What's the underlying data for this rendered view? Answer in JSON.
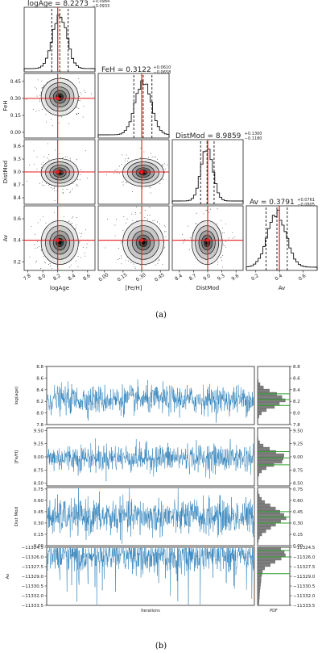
{
  "figure_a": {
    "caption": "(a)",
    "titles": [
      {
        "name": "logAge",
        "value": "8.2273",
        "plus": "+0.0984",
        "minus": "−0.0933"
      },
      {
        "name": "FeH",
        "value": "0.3122",
        "plus": "+0.0610",
        "minus": "−0.0658"
      },
      {
        "name": "DistMod",
        "value": "8.9859",
        "plus": "+0.1300",
        "minus": "−0.1180"
      },
      {
        "name": "Av",
        "value": "0.3791",
        "plus": "+0.0761",
        "minus": "−0.0805"
      }
    ],
    "xlabels": [
      "logAge",
      "[Fe/H]",
      "DistMod",
      "Av"
    ],
    "ylabels": [
      "FeH",
      "DistMod",
      "Av"
    ]
  },
  "figure_b": {
    "caption": "(b)",
    "xlabel_left": "Iterations",
    "xlabel_right": "PDF",
    "ylabels": [
      "log(age)",
      "[Fe/H]",
      "Dist Mod",
      "Av"
    ]
  },
  "colors": {
    "trace": "#1f77b4",
    "truth": "#e41a1c",
    "hist_green": "#2ca02c",
    "hist_fill": "#7f7f7f"
  },
  "chart_data": [
    {
      "type": "corner",
      "parameters": [
        "logAge",
        "FeH",
        "DistMod",
        "Av"
      ],
      "median": [
        8.2273,
        0.3122,
        8.9859,
        0.3791
      ],
      "err_plus": [
        0.0984,
        0.061,
        0.13,
        0.0761
      ],
      "err_minus": [
        0.0933,
        0.0658,
        0.118,
        0.0805
      ],
      "truth": [
        8.2,
        0.3,
        9.0,
        0.4
      ],
      "ranges": [
        [
          7.75,
          8.7
        ],
        [
          -0.05,
          0.52
        ],
        [
          8.25,
          9.75
        ],
        [
          0.12,
          0.72
        ]
      ],
      "ticks": [
        [
          "7.8",
          "8.0",
          "8.2",
          "8.4",
          "8.6"
        ],
        [
          "0.00",
          "0.15",
          "0.30",
          "0.45"
        ],
        [
          "8.4",
          "8.7",
          "9.0",
          "9.3",
          "9.6"
        ],
        [
          "0.2",
          "0.4",
          "0.6"
        ]
      ],
      "tick_values": [
        [
          7.8,
          8.0,
          8.2,
          8.4,
          8.6
        ],
        [
          0.0,
          0.15,
          0.3,
          0.45
        ],
        [
          8.4,
          8.7,
          9.0,
          9.3,
          9.6
        ],
        [
          0.2,
          0.4,
          0.6
        ]
      ],
      "feh_yticks": [
        "0.00",
        "0.15",
        "0.30",
        "0.45"
      ],
      "feh_ytick_values": [
        0.0,
        0.15,
        0.3,
        0.45
      ]
    },
    {
      "type": "line",
      "panels": [
        {
          "name": "log(age)",
          "center": 8.23,
          "sd": 0.12,
          "ylim": [
            7.8,
            8.8
          ],
          "left_ticks": [
            "7.8",
            "8.0",
            "8.2",
            "8.4",
            "8.6",
            "8.8"
          ],
          "left_tick_values": [
            7.8,
            8.0,
            8.2,
            8.4,
            8.6,
            8.8
          ],
          "right_ticks": [
            "7.8",
            "8.0",
            "8.2",
            "8.4",
            "8.6",
            "8.8"
          ],
          "right_tick_values": [
            7.8,
            8.0,
            8.2,
            8.4,
            8.6,
            8.8
          ],
          "green": [
            8.13,
            8.23,
            8.33
          ]
        },
        {
          "name": "[Fe/H]",
          "center": 8.98,
          "sd": 0.13,
          "ylim": [
            8.45,
            9.55
          ],
          "left_ticks": [
            "8.50",
            "8.75",
            "9.00",
            "9.25",
            "9.50"
          ],
          "left_tick_values": [
            8.5,
            8.75,
            9.0,
            9.25,
            9.5
          ],
          "right_ticks": [
            "8.50",
            "8.75",
            "9.00",
            "9.25",
            "9.50"
          ],
          "right_tick_values": [
            8.5,
            8.75,
            9.0,
            9.25,
            9.5
          ],
          "green": [
            8.85,
            8.98,
            9.1
          ]
        },
        {
          "name": "Dist Mod",
          "center": 0.38,
          "sd": 0.12,
          "ylim": [
            0.0,
            0.77
          ],
          "left_ticks": [
            "0.00",
            "0.15",
            "0.30",
            "0.45",
            "0.60",
            "0.75"
          ],
          "left_tick_values": [
            0.0,
            0.15,
            0.3,
            0.45,
            0.6,
            0.75
          ],
          "right_ticks": [
            "0.00",
            "0.15",
            "0.30",
            "0.45",
            "0.60",
            "0.75"
          ],
          "right_tick_values": [
            0.0,
            0.15,
            0.3,
            0.45,
            0.6,
            0.75
          ],
          "green": [
            0.3,
            0.38,
            0.45
          ]
        },
        {
          "name": "Av",
          "center": -11325.6,
          "sd": 1.3,
          "ylim": [
            -11333.5,
            -11324.5
          ],
          "left_ticks": [
            "−11324.5",
            "−11326.0",
            "−11327.5",
            "−11329.0",
            "−11330.5",
            "−11332.0",
            "−11333.5"
          ],
          "left_tick_values": [
            -11324.5,
            -11326.0,
            -11327.5,
            -11329.0,
            -11330.5,
            -11332.0,
            -11333.5
          ],
          "right_ticks": [
            "−11324.5",
            "−11326.0",
            "−11327.5",
            "−11329.0",
            "−11330.5",
            "−11332.0",
            "−11333.5"
          ],
          "right_tick_values": [
            -11324.5,
            -11326.0,
            -11327.5,
            -11329.0,
            -11330.5,
            -11332.0,
            -11333.5
          ],
          "green": [
            -11325.0,
            -11326.0,
            -11328.6
          ]
        }
      ]
    }
  ]
}
